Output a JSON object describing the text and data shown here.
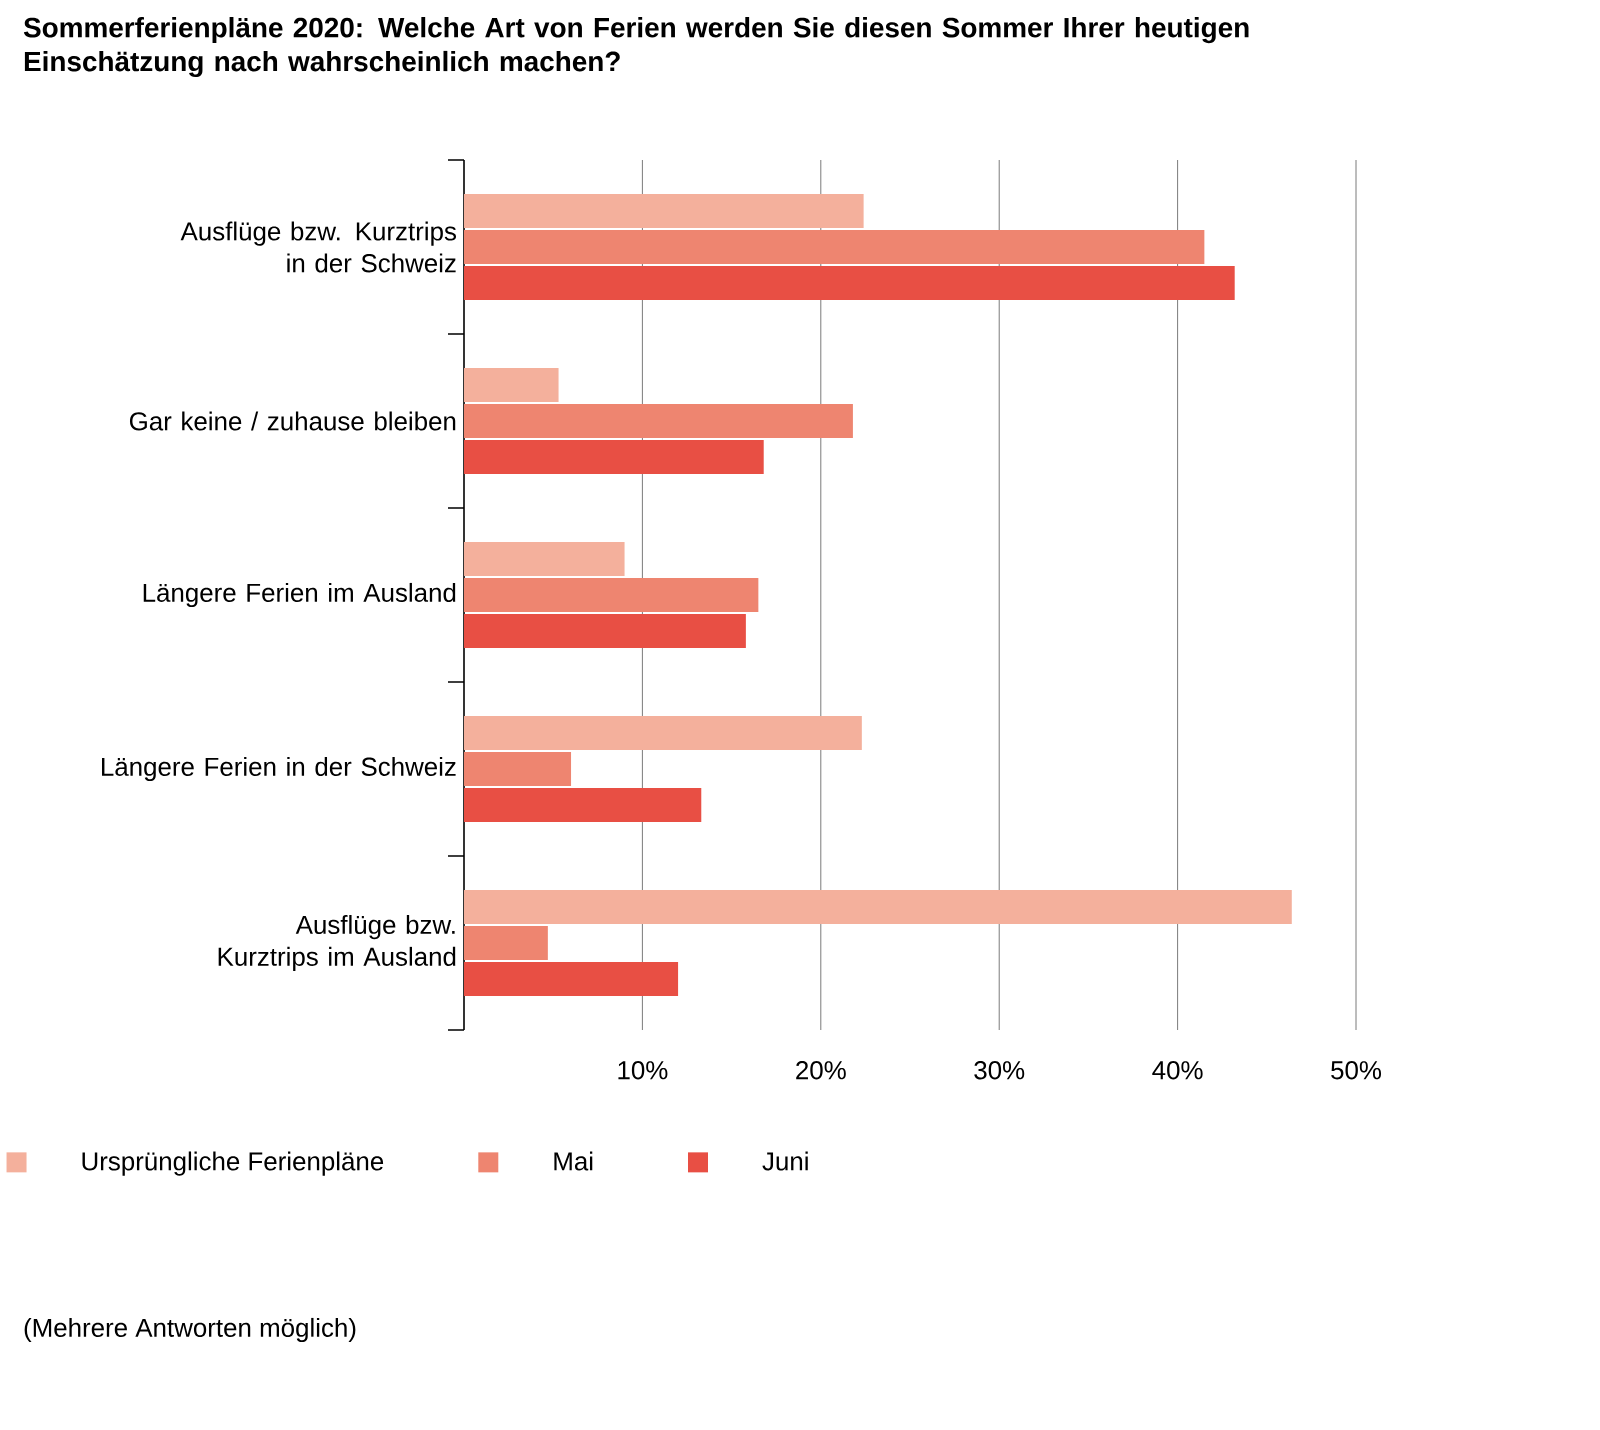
{
  "chart_data": {
    "type": "bar",
    "orientation": "horizontal",
    "title": "Sommerferienpläne 2020: Welche Art von Ferien werden Sie diesen Sommer Ihrer heutigen Einschätzung nach wahrscheinlich machen?",
    "categories": [
      "Ausflüge bzw. Kurztrips in der Schweiz",
      "Gar keine / zuhause bleiben",
      "Längere Ferien im Ausland",
      "Längere Ferien in der Schweiz",
      "Ausflüge bzw. Kurztrips im Ausland"
    ],
    "series": [
      {
        "name": "Ursprüngliche Ferienpläne",
        "color": "#f4b09c",
        "values": [
          22.4,
          5.3,
          9.0,
          22.3,
          46.4
        ]
      },
      {
        "name": "Mai",
        "color": "#ee8570",
        "values": [
          41.5,
          21.8,
          16.5,
          6.0,
          4.7
        ]
      },
      {
        "name": "Juni",
        "color": "#e84f44",
        "values": [
          43.2,
          16.8,
          15.8,
          13.3,
          12.0
        ]
      }
    ],
    "xlim": [
      0,
      50
    ],
    "xticks": [
      {
        "value": 10,
        "label": "10%"
      },
      {
        "value": 20,
        "label": "20%"
      },
      {
        "value": 30,
        "label": "30%"
      },
      {
        "value": 40,
        "label": "40%"
      },
      {
        "value": 50,
        "label": "50%"
      }
    ],
    "grid": "x",
    "legend": "bottom",
    "annotations": [
      "(Mehrere Antworten möglich)"
    ]
  }
}
